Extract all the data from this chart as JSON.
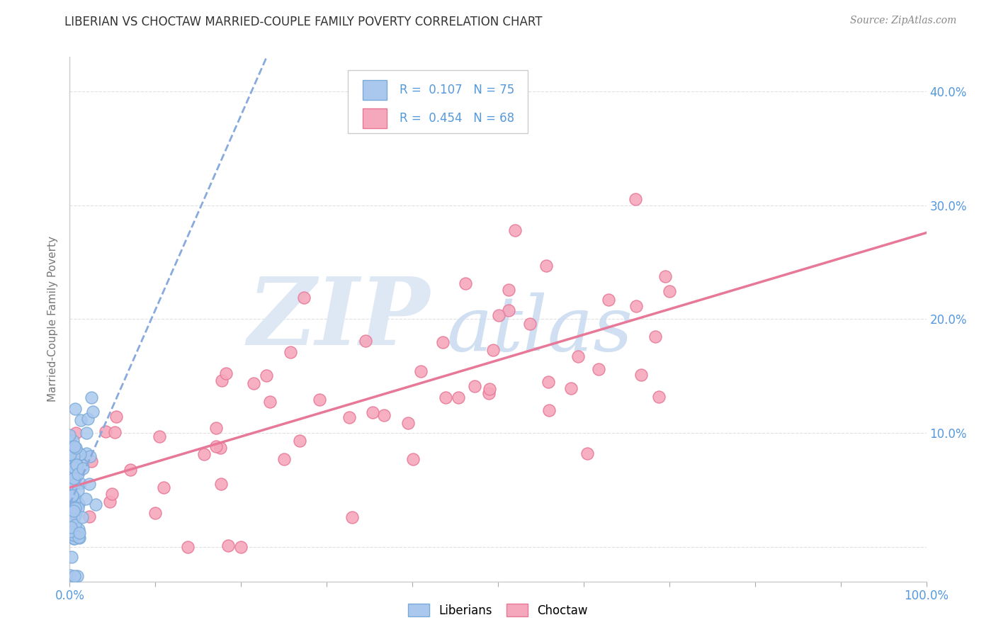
{
  "title": "LIBERIAN VS CHOCTAW MARRIED-COUPLE FAMILY POVERTY CORRELATION CHART",
  "source": "Source: ZipAtlas.com",
  "ylabel": "Married-Couple Family Poverty",
  "xlim": [
    0,
    100
  ],
  "ylim": [
    -3,
    43
  ],
  "liberian_R": 0.107,
  "liberian_N": 75,
  "choctaw_R": 0.454,
  "choctaw_N": 68,
  "liberian_color": "#aac8ee",
  "choctaw_color": "#f5a8bc",
  "liberian_edge_color": "#7aaad8",
  "choctaw_edge_color": "#e87898",
  "liberian_line_color": "#88aadd",
  "choctaw_line_color": "#e87898",
  "title_color": "#333333",
  "axis_tick_color": "#5599dd",
  "watermark_zip_color": "#dde8f4",
  "watermark_atlas_color": "#c8daf0",
  "background_color": "#ffffff",
  "grid_color": "#dddddd",
  "legend_R1_color": "#5599dd",
  "legend_N1_color": "#44bb44",
  "legend_R2_color": "#5599dd",
  "legend_N2_color": "#44bb44"
}
